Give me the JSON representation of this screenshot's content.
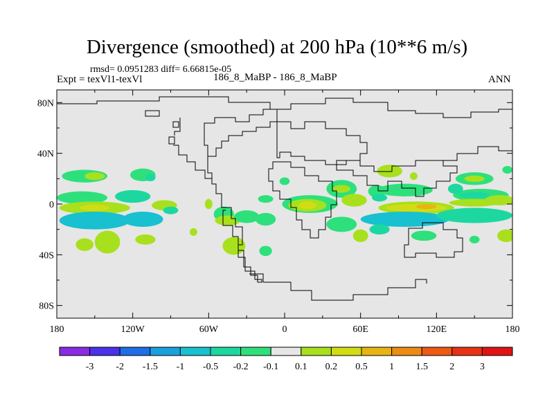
{
  "title": "Divergence (smoothed) at 200 hPa (10**6 m/s)",
  "stats": "rmsd= 0.0951283 diff= 6.66815e-05",
  "expt": "Expt = texVl1-texVl",
  "runs": "186_8_MaBP - 186_8_MaBP",
  "period": "ANN",
  "chart_data": {
    "type": "heatmap",
    "map_projection": "cylindrical-equidistant",
    "variable": "Divergence (smoothed)",
    "level": "200 hPa",
    "units": "10**6 m/s",
    "xlim": [
      -180,
      180
    ],
    "ylim": [
      -90,
      90
    ],
    "x_ticks": [
      {
        "value": -180,
        "label": "180"
      },
      {
        "value": -120,
        "label": "120W"
      },
      {
        "value": -60,
        "label": "60W"
      },
      {
        "value": 0,
        "label": "0"
      },
      {
        "value": 60,
        "label": "60E"
      },
      {
        "value": 120,
        "label": "120E"
      },
      {
        "value": 180,
        "label": "180"
      }
    ],
    "y_ticks": [
      {
        "value": 80,
        "label": "80N"
      },
      {
        "value": 40,
        "label": "40N"
      },
      {
        "value": 0,
        "label": "0"
      },
      {
        "value": -40,
        "label": "40S"
      },
      {
        "value": -80,
        "label": "80S"
      }
    ],
    "colorbar": {
      "labels": [
        "-3",
        "-2",
        "-1.5",
        "-1",
        "-0.5",
        "-0.2",
        "-0.1",
        "0.1",
        "0.2",
        "0.5",
        "1",
        "1.5",
        "2",
        "3"
      ],
      "colors": [
        "#8a2be2",
        "#4a32e8",
        "#1e6ee6",
        "#1aa0dc",
        "#18c0d0",
        "#1cd8a0",
        "#2ee07c",
        "#e6e6e6",
        "#a8e01e",
        "#d2dc14",
        "#e8b414",
        "#ec8c14",
        "#ec5a14",
        "#e83214",
        "#e01414"
      ]
    },
    "background_color": "#e6e6e6",
    "regions": [
      {
        "lon": -158,
        "lat": 22,
        "rx": 18,
        "ry": 5,
        "color": "#2ee07c"
      },
      {
        "lon": -150,
        "lat": 22,
        "rx": 8,
        "ry": 3,
        "color": "#a8e01e"
      },
      {
        "lon": -112,
        "lat": 23,
        "rx": 10,
        "ry": 5,
        "color": "#2ee07c"
      },
      {
        "lon": -106,
        "lat": 21,
        "rx": 4,
        "ry": 3,
        "color": "#1cd8a0"
      },
      {
        "lon": -160,
        "lat": 5,
        "rx": 20,
        "ry": 5,
        "color": "#2ee07c"
      },
      {
        "lon": -120,
        "lat": 6,
        "rx": 14,
        "ry": 5,
        "color": "#1cd8a0"
      },
      {
        "lon": -150,
        "lat": -3,
        "rx": 28,
        "ry": 5,
        "color": "#a8e01e"
      },
      {
        "lon": -150,
        "lat": -3,
        "rx": 12,
        "ry": 2.5,
        "color": "#d2dc14"
      },
      {
        "lon": -95,
        "lat": -1,
        "rx": 10,
        "ry": 4,
        "color": "#a8e01e"
      },
      {
        "lon": -150,
        "lat": -13,
        "rx": 28,
        "ry": 7,
        "color": "#18c0d0"
      },
      {
        "lon": -112,
        "lat": -12,
        "rx": 16,
        "ry": 6,
        "color": "#18c0d0"
      },
      {
        "lon": -158,
        "lat": -32,
        "rx": 7,
        "ry": 5,
        "color": "#a8e01e"
      },
      {
        "lon": -140,
        "lat": -30,
        "rx": 10,
        "ry": 9,
        "color": "#a8e01e"
      },
      {
        "lon": -110,
        "lat": -28,
        "rx": 8,
        "ry": 4,
        "color": "#a8e01e"
      },
      {
        "lon": -90,
        "lat": -5,
        "rx": 6,
        "ry": 3,
        "color": "#1cd8a0"
      },
      {
        "lon": -60,
        "lat": 0,
        "rx": 3,
        "ry": 4,
        "color": "#a8e01e"
      },
      {
        "lon": -48,
        "lat": -8,
        "rx": 8,
        "ry": 6,
        "color": "#2ee07c"
      },
      {
        "lon": -45,
        "lat": -13,
        "rx": 10,
        "ry": 4,
        "color": "#a8e01e"
      },
      {
        "lon": -30,
        "lat": -10,
        "rx": 10,
        "ry": 5,
        "color": "#2ee07c"
      },
      {
        "lon": -15,
        "lat": -12,
        "rx": 8,
        "ry": 5,
        "color": "#2ee07c"
      },
      {
        "lon": -15,
        "lat": 4,
        "rx": 6,
        "ry": 3,
        "color": "#2ee07c"
      },
      {
        "lon": -40,
        "lat": -33,
        "rx": 9,
        "ry": 7,
        "color": "#a8e01e"
      },
      {
        "lon": -15,
        "lat": -37,
        "rx": 5,
        "ry": 4,
        "color": "#2ee07c"
      },
      {
        "lon": -72,
        "lat": -22,
        "rx": 3,
        "ry": 3,
        "color": "#a8e01e"
      },
      {
        "lon": 0,
        "lat": 18,
        "rx": 4,
        "ry": 3,
        "color": "#2ee07c"
      },
      {
        "lon": 20,
        "lat": 0,
        "rx": 22,
        "ry": 7,
        "color": "#2ee07c"
      },
      {
        "lon": 18,
        "lat": -1,
        "rx": 15,
        "ry": 5,
        "color": "#a8e01e"
      },
      {
        "lon": 18,
        "lat": -1,
        "rx": 7,
        "ry": 3,
        "color": "#d2dc14"
      },
      {
        "lon": 45,
        "lat": 12,
        "rx": 12,
        "ry": 7,
        "color": "#2ee07c"
      },
      {
        "lon": 45,
        "lat": 12,
        "rx": 7,
        "ry": 3,
        "color": "#a8e01e"
      },
      {
        "lon": 55,
        "lat": 3,
        "rx": 10,
        "ry": 5,
        "color": "#a8e01e"
      },
      {
        "lon": 45,
        "lat": -16,
        "rx": 12,
        "ry": 6,
        "color": "#2ee07c"
      },
      {
        "lon": 60,
        "lat": -25,
        "rx": 6,
        "ry": 5,
        "color": "#a8e01e"
      },
      {
        "lon": 73,
        "lat": 10,
        "rx": 7,
        "ry": 5,
        "color": "#2ee07c"
      },
      {
        "lon": 75,
        "lat": 5,
        "rx": 6,
        "ry": 3,
        "color": "#1cd8a0"
      },
      {
        "lon": 83,
        "lat": 26,
        "rx": 10,
        "ry": 5,
        "color": "#a8e01e"
      },
      {
        "lon": 102,
        "lat": 22,
        "rx": 3,
        "ry": 3,
        "color": "#a8e01e"
      },
      {
        "lon": 95,
        "lat": 11,
        "rx": 22,
        "ry": 5,
        "color": "#2ee07c"
      },
      {
        "lon": 104,
        "lat": -3,
        "rx": 30,
        "ry": 5,
        "color": "#a8e01e"
      },
      {
        "lon": 104,
        "lat": -3,
        "rx": 24,
        "ry": 3,
        "color": "#d2dc14"
      },
      {
        "lon": 112,
        "lat": -2,
        "rx": 8,
        "ry": 2,
        "color": "#e8b414"
      },
      {
        "lon": 95,
        "lat": -12,
        "rx": 35,
        "ry": 6,
        "color": "#18c0d0"
      },
      {
        "lon": 75,
        "lat": -20,
        "rx": 8,
        "ry": 4,
        "color": "#1cd8a0"
      },
      {
        "lon": 110,
        "lat": -25,
        "rx": 10,
        "ry": 4,
        "color": "#2ee07c"
      },
      {
        "lon": 150,
        "lat": -9,
        "rx": 30,
        "ry": 6,
        "color": "#1cd8a0"
      },
      {
        "lon": 155,
        "lat": 7,
        "rx": 22,
        "ry": 5,
        "color": "#2ee07c"
      },
      {
        "lon": 150,
        "lat": 7,
        "rx": 12,
        "ry": 2.5,
        "color": "#1cd8a0"
      },
      {
        "lon": 150,
        "lat": 20,
        "rx": 15,
        "ry": 5,
        "color": "#2ee07c"
      },
      {
        "lon": 150,
        "lat": 20,
        "rx": 8,
        "ry": 2.5,
        "color": "#a8e01e"
      },
      {
        "lon": 170,
        "lat": 3,
        "rx": 12,
        "ry": 4,
        "color": "#a8e01e"
      },
      {
        "lon": 150,
        "lat": 1,
        "rx": 20,
        "ry": 3,
        "color": "#a8e01e"
      },
      {
        "lon": 176,
        "lat": 27,
        "rx": 4,
        "ry": 3,
        "color": "#2ee07c"
      },
      {
        "lon": 175,
        "lat": -25,
        "rx": 7,
        "ry": 5,
        "color": "#a8e01e"
      },
      {
        "lon": 150,
        "lat": -28,
        "rx": 4,
        "ry": 3,
        "color": "#2ee07c"
      },
      {
        "lon": 135,
        "lat": 12,
        "rx": 6,
        "ry": 4,
        "color": "#1cd8a0"
      }
    ]
  }
}
